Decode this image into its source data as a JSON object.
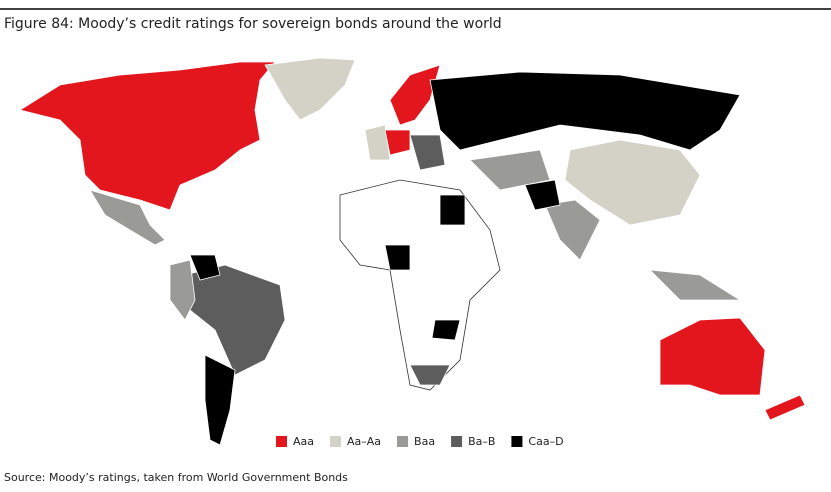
{
  "header": {
    "title": "Figure 84: Moody’s credit ratings for sovereign bonds around the world"
  },
  "legend": {
    "items": [
      {
        "label": "Aaa",
        "color": "#e3151d"
      },
      {
        "label": "Aa–Aa",
        "color": "#d2d2c6"
      },
      {
        "label": "Baa",
        "color": "#9a9a96"
      },
      {
        "label": "Ba–B",
        "color": "#5c5d5c"
      },
      {
        "label": "Caa–D",
        "color": "#000000"
      }
    ]
  },
  "footer": {
    "source": "Source: Moody’s ratings, taken from World Government Bonds"
  }
}
